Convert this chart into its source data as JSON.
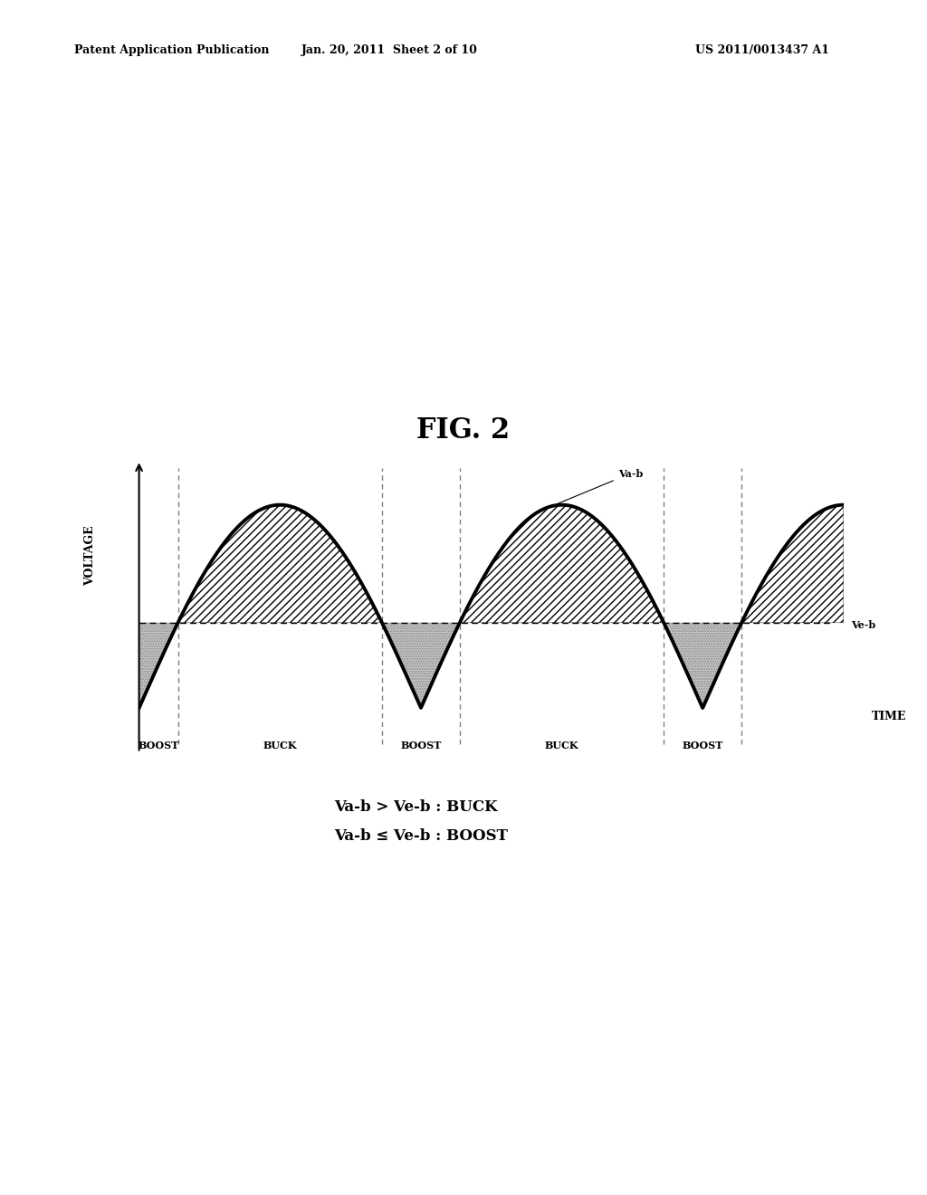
{
  "title": "FIG. 2",
  "patent_header_left": "Patent Application Publication",
  "patent_header_mid": "Jan. 20, 2011  Sheet 2 of 10",
  "patent_header_right": "US 2011/0013437 A1",
  "voltage_label": "VOLTAGE",
  "time_label": "TIME",
  "vab_label": "Va-b",
  "veb_label": "Ve-b",
  "legend_line1": "Va-b > Ve-b : BUCK",
  "legend_line2": "Va-b ≤ Ve-b : BOOST",
  "region_labels": [
    "BOOST",
    "BUCK",
    "BOOST",
    "BUCK",
    "BOOST"
  ],
  "ve_b_level": 0.42,
  "sine_amplitude": 1.0,
  "background_color": "#ffffff",
  "sine_color": "#000000",
  "sine_linewidth": 2.8
}
